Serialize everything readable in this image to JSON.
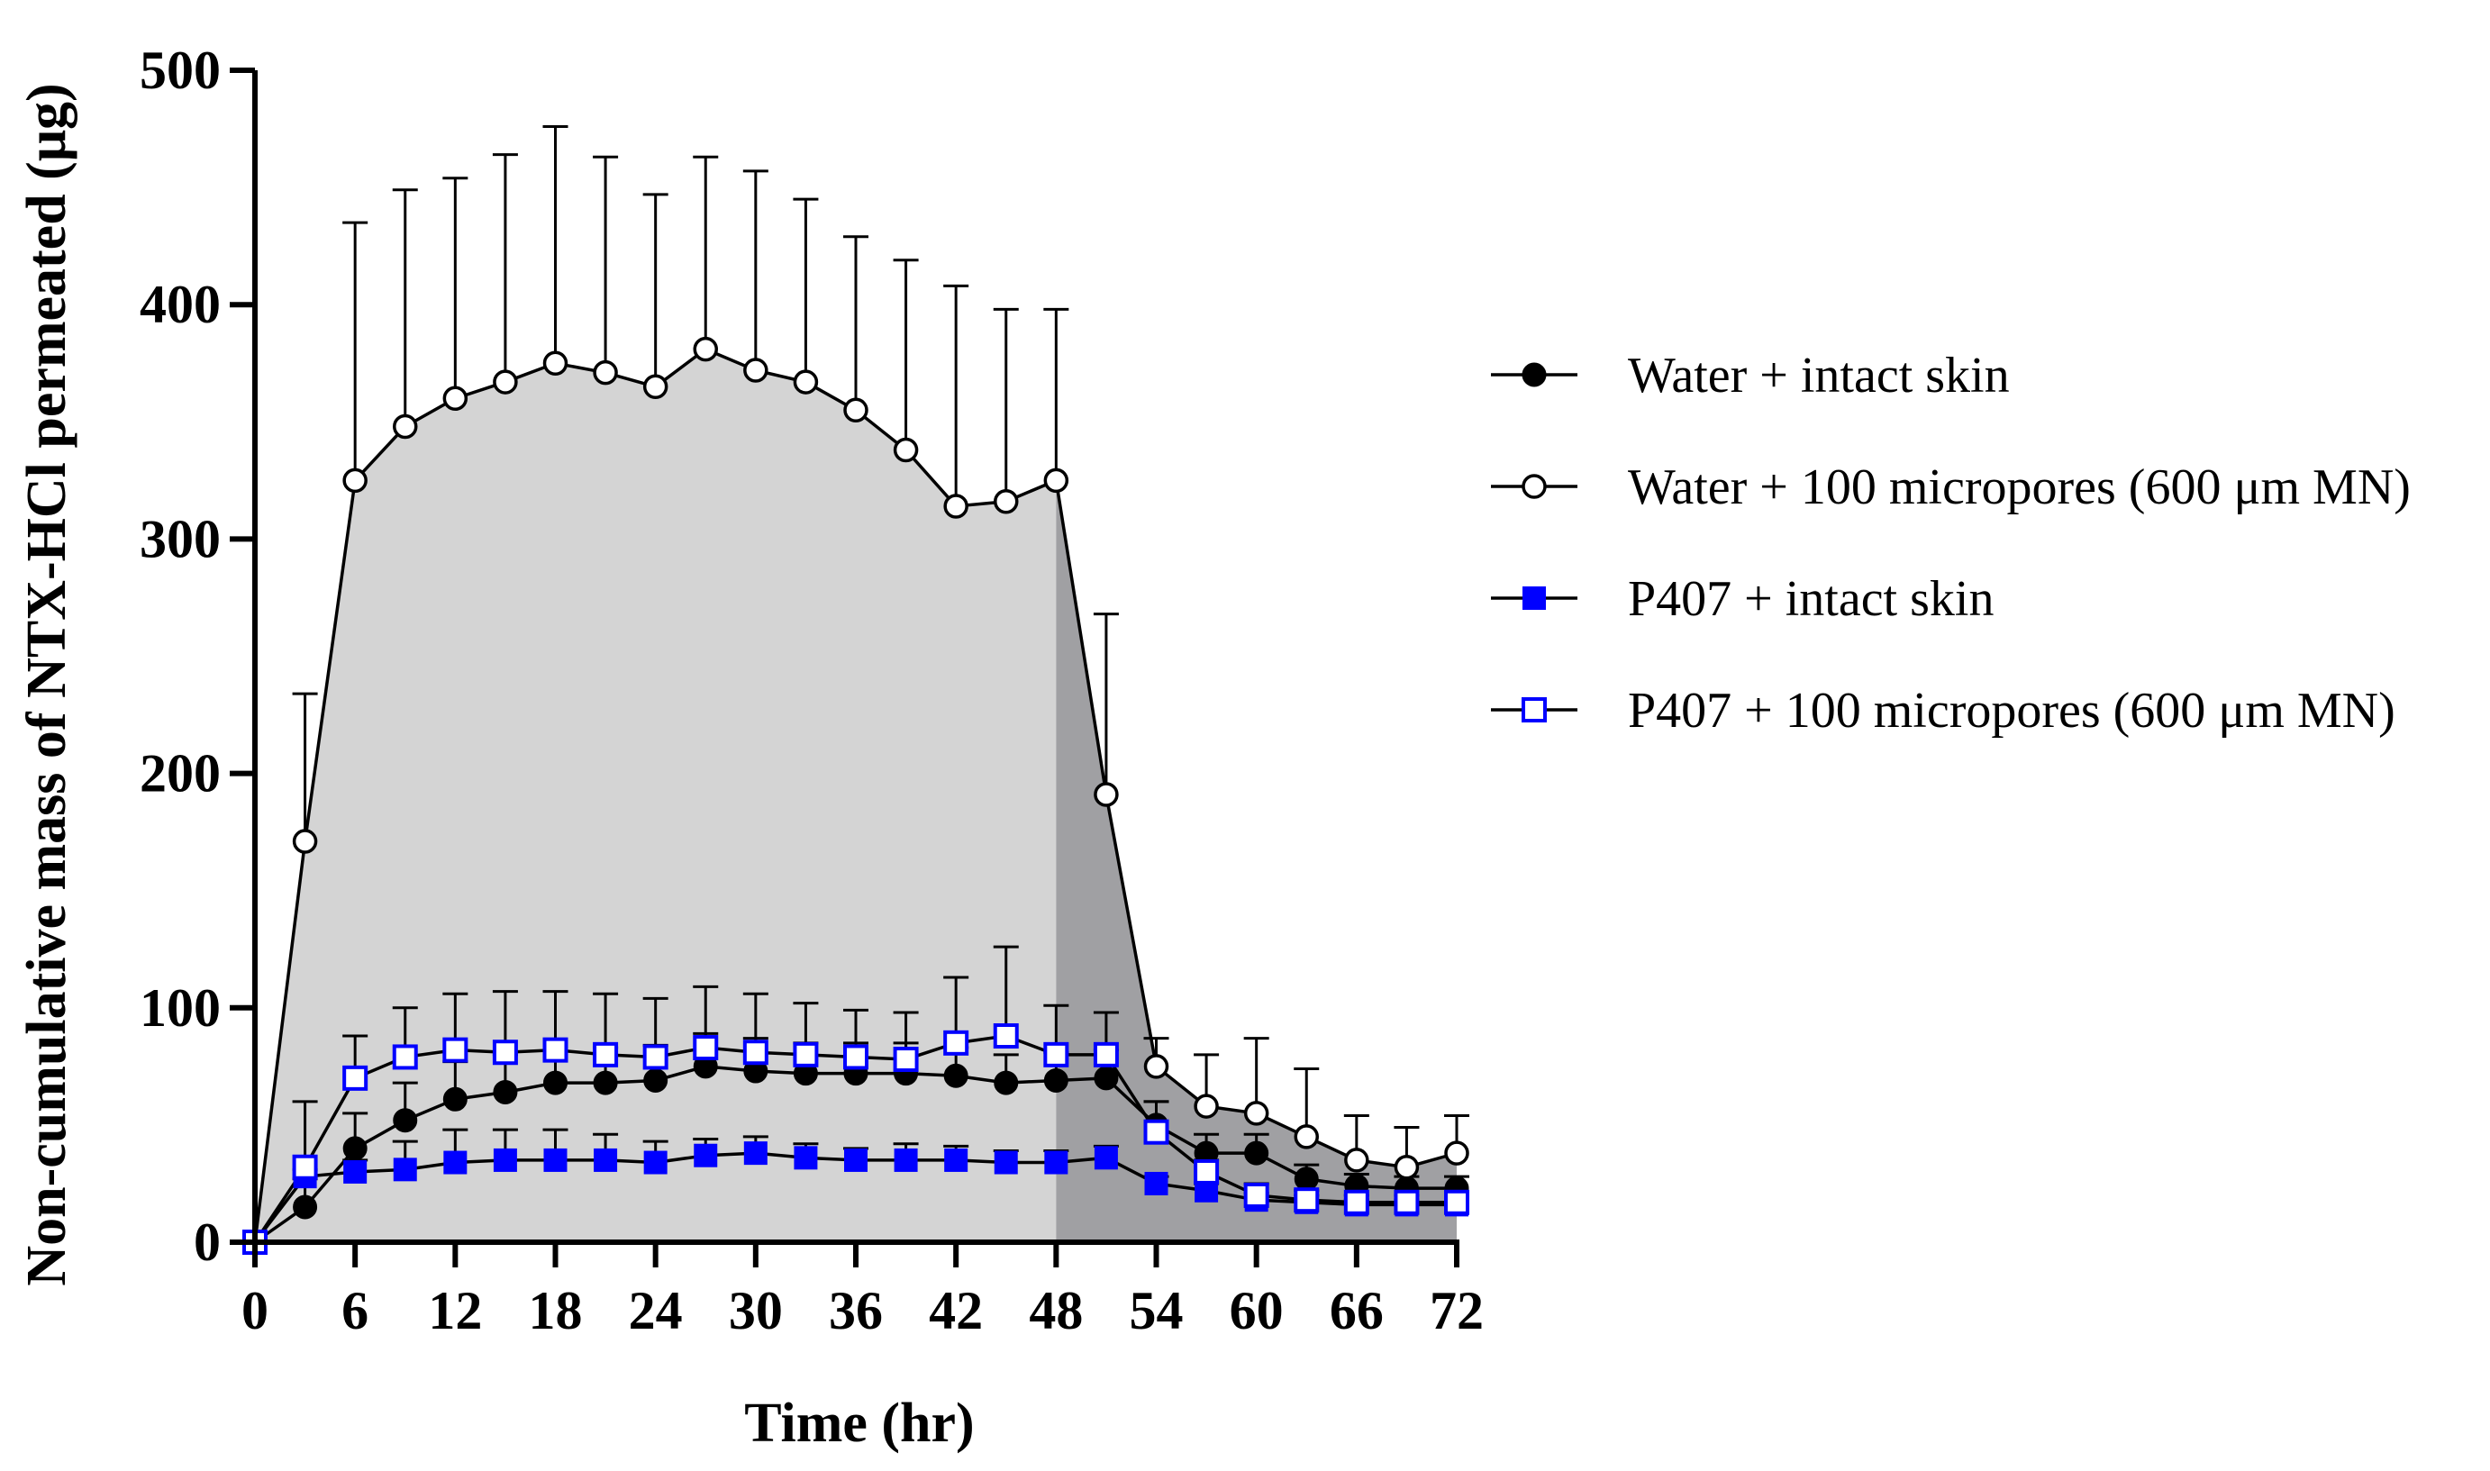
{
  "chart_data": {
    "type": "line",
    "title": "",
    "xlabel": "Time (hr)",
    "ylabel": "Non-cumulative mass of NTX-HCl permeated (μg)",
    "xlim": [
      0,
      72
    ],
    "ylim": [
      0,
      500
    ],
    "x_ticks": [
      0,
      6,
      12,
      18,
      24,
      30,
      36,
      42,
      48,
      54,
      60,
      66,
      72
    ],
    "y_ticks": [
      0,
      100,
      200,
      300,
      400,
      500
    ],
    "grid": false,
    "legend_position": "right",
    "shaded_regions": [
      {
        "x_start": 0,
        "x_end": 48,
        "color": "#d4d4d4"
      },
      {
        "x_start": 48,
        "x_end": 72,
        "color": "#a0a0a3"
      }
    ],
    "x": [
      0,
      3,
      6,
      9,
      12,
      15,
      18,
      21,
      24,
      27,
      30,
      33,
      36,
      39,
      42,
      45,
      48,
      51,
      54,
      57,
      60,
      63,
      66,
      69,
      72
    ],
    "series": [
      {
        "name": "Water + intact skin",
        "marker": "circle-filled",
        "color": "#000000",
        "values": [
          0,
          15,
          40,
          52,
          61,
          64,
          68,
          68,
          69,
          75,
          73,
          72,
          72,
          72,
          71,
          68,
          69,
          70,
          50,
          38,
          38,
          27,
          24,
          23,
          23
        ],
        "errors": [
          0,
          12,
          15,
          16,
          16,
          16,
          16,
          15,
          15,
          14,
          14,
          13,
          13,
          13,
          12,
          12,
          12,
          12,
          10,
          8,
          8,
          6,
          5,
          5,
          5
        ]
      },
      {
        "name": "Water + 100 micropores  (600 μm MN)",
        "marker": "circle-open",
        "color": "#000000",
        "values": [
          0,
          171,
          325,
          348,
          360,
          367,
          375,
          371,
          365,
          381,
          372,
          367,
          355,
          338,
          314,
          316,
          325,
          191,
          75,
          58,
          55,
          45,
          35,
          32,
          38
        ],
        "errors": [
          0,
          63,
          110,
          101,
          94,
          97,
          101,
          92,
          82,
          82,
          85,
          78,
          74,
          81,
          94,
          82,
          73,
          77,
          12,
          22,
          32,
          29,
          19,
          17,
          16
        ]
      },
      {
        "name": "P407 + intact skin",
        "marker": "square-filled",
        "color": "#0000ff",
        "values": [
          0,
          28,
          30,
          31,
          34,
          35,
          35,
          35,
          34,
          37,
          38,
          36,
          35,
          35,
          35,
          34,
          34,
          36,
          25,
          22,
          18,
          17,
          16,
          16,
          16
        ],
        "errors": [
          0,
          3,
          5,
          12,
          14,
          13,
          13,
          11,
          9,
          7,
          7,
          6,
          5,
          7,
          6,
          5,
          5,
          5,
          3,
          3,
          3,
          3,
          2,
          2,
          2
        ]
      },
      {
        "name": "P407 + 100 micropores  (600 μm MN)",
        "marker": "square-open",
        "color": "#0000ff",
        "values": [
          0,
          32,
          70,
          79,
          82,
          81,
          82,
          80,
          79,
          83,
          81,
          80,
          79,
          78,
          85,
          88,
          80,
          80,
          47,
          30,
          20,
          18,
          17,
          17,
          17
        ],
        "errors": [
          0,
          28,
          18,
          21,
          24,
          26,
          25,
          26,
          25,
          26,
          25,
          22,
          20,
          20,
          28,
          38,
          21,
          18,
          13,
          5,
          5,
          4,
          3,
          3,
          3
        ]
      }
    ]
  }
}
